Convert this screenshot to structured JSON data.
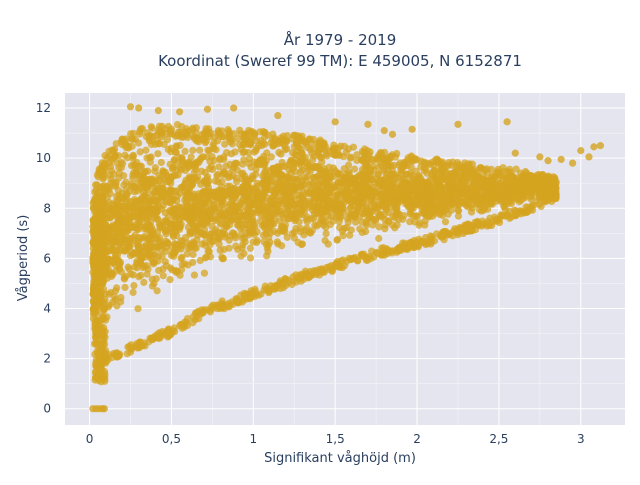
{
  "chart_data": {
    "type": "scatter",
    "title_lines": [
      "År 1979 - 2019",
      "Koordinat (Sweref 99 TM): E 459005, N 6152871"
    ],
    "xlabel": "Signifikant våghöjd (m)",
    "ylabel": "Vågperiod (s)",
    "xlim": [
      -0.15,
      3.27
    ],
    "ylim": [
      -0.65,
      12.6
    ],
    "x_ticks": [
      0,
      0.5,
      1,
      1.5,
      2,
      2.5,
      3
    ],
    "x_tick_labels": [
      "0",
      "0,5",
      "1",
      "1,5",
      "2",
      "2,5",
      "3"
    ],
    "y_ticks": [
      0,
      2,
      4,
      6,
      8,
      10,
      12
    ],
    "y_tick_labels": [
      "0",
      "2",
      "4",
      "6",
      "8",
      "10",
      "12"
    ],
    "grid": true,
    "legend": "none",
    "marker_color": "#D4A420",
    "plot_bgcolor": "#E5E5EF",
    "envelope": {
      "x": [
        0.02,
        0.05,
        0.1,
        0.2,
        0.3,
        0.5,
        0.7,
        1.0,
        1.3,
        1.5,
        1.8,
        2.0,
        2.2,
        2.4,
        2.6,
        2.7,
        2.85
      ],
      "y_lower": [
        1.0,
        1.3,
        1.9,
        2.1,
        2.3,
        2.9,
        3.7,
        4.4,
        5.1,
        5.5,
        6.1,
        6.4,
        6.8,
        7.2,
        7.6,
        7.9,
        8.3
      ],
      "y_upper": [
        8.2,
        9.6,
        10.2,
        10.8,
        11.2,
        11.4,
        11.2,
        11.1,
        10.9,
        10.6,
        10.3,
        10.1,
        9.9,
        9.7,
        9.6,
        9.4,
        9.3
      ]
    },
    "highlight_points": [
      {
        "x": 0.25,
        "y": 12.05
      },
      {
        "x": 0.3,
        "y": 12.0
      },
      {
        "x": 0.42,
        "y": 11.9
      },
      {
        "x": 0.55,
        "y": 11.85
      },
      {
        "x": 0.72,
        "y": 11.95
      },
      {
        "x": 0.88,
        "y": 12.0
      },
      {
        "x": 1.15,
        "y": 11.7
      },
      {
        "x": 1.5,
        "y": 11.45
      },
      {
        "x": 1.7,
        "y": 11.35
      },
      {
        "x": 1.8,
        "y": 11.1
      },
      {
        "x": 1.85,
        "y": 10.95
      },
      {
        "x": 1.97,
        "y": 11.15
      },
      {
        "x": 2.25,
        "y": 11.35
      },
      {
        "x": 2.55,
        "y": 11.45
      },
      {
        "x": 2.6,
        "y": 10.2
      },
      {
        "x": 2.75,
        "y": 10.05
      },
      {
        "x": 2.8,
        "y": 9.9
      },
      {
        "x": 2.88,
        "y": 9.95
      },
      {
        "x": 2.95,
        "y": 9.8
      },
      {
        "x": 3.0,
        "y": 10.3
      },
      {
        "x": 3.05,
        "y": 10.05
      },
      {
        "x": 3.08,
        "y": 10.45
      },
      {
        "x": 3.12,
        "y": 10.5
      },
      {
        "x": 0.02,
        "y": 0.0
      },
      {
        "x": 0.04,
        "y": 0.0
      },
      {
        "x": 0.06,
        "y": 0.0
      },
      {
        "x": 0.08,
        "y": 0.0
      },
      {
        "x": 0.09,
        "y": 0.0
      }
    ]
  }
}
